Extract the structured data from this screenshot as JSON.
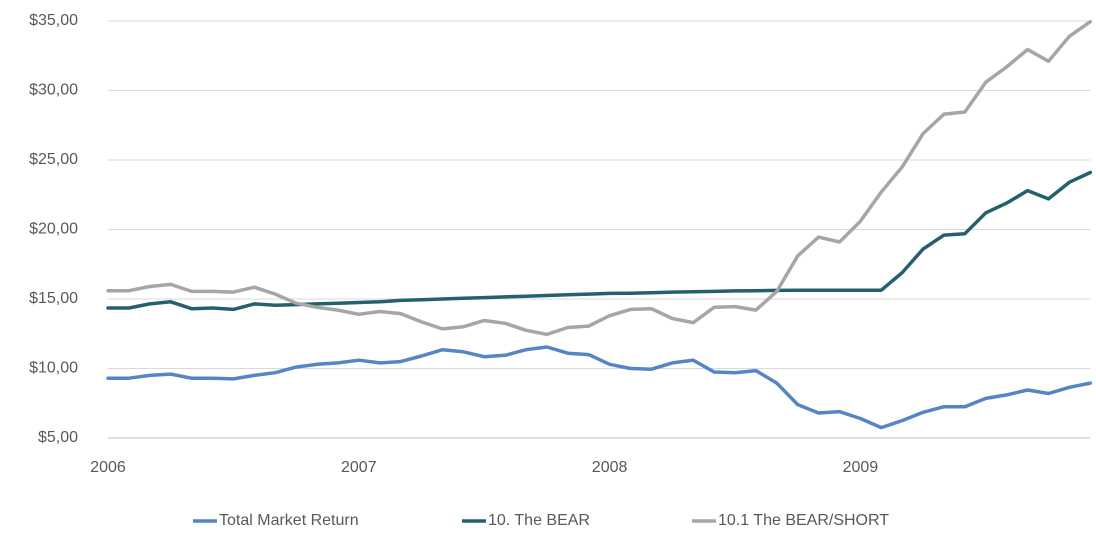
{
  "chart_data": {
    "type": "line",
    "categories": [
      "2006",
      null,
      null,
      null,
      null,
      null,
      null,
      null,
      null,
      null,
      null,
      null,
      "2007",
      null,
      null,
      null,
      null,
      null,
      null,
      null,
      null,
      null,
      null,
      null,
      "2008",
      null,
      null,
      null,
      null,
      null,
      null,
      null,
      null,
      null,
      null,
      null,
      "2009",
      null,
      null,
      null,
      null,
      null,
      null,
      null,
      null,
      null,
      null,
      null
    ],
    "series": [
      {
        "name": "Total Market Return",
        "color": "#5585c5",
        "values": [
          9.3,
          9.3,
          9.5,
          9.6,
          9.3,
          9.3,
          9.25,
          9.5,
          9.7,
          10.1,
          10.3,
          10.4,
          10.6,
          10.4,
          10.5,
          10.9,
          11.35,
          11.2,
          10.85,
          10.95,
          11.35,
          11.55,
          11.1,
          11.0,
          10.3,
          10.0,
          9.95,
          10.4,
          10.6,
          9.75,
          9.7,
          9.85,
          8.95,
          7.4,
          6.8,
          6.9,
          6.4,
          5.75,
          6.25,
          6.85,
          7.25,
          7.25,
          7.85,
          8.1,
          8.45,
          8.2,
          8.65,
          8.95
        ]
      },
      {
        "name": "10. The BEAR",
        "color": "#26606d",
        "values": [
          14.35,
          14.35,
          14.65,
          14.8,
          14.3,
          14.35,
          14.25,
          14.65,
          14.55,
          14.6,
          14.65,
          14.7,
          14.75,
          14.8,
          14.9,
          14.95,
          15.0,
          15.05,
          15.1,
          15.15,
          15.2,
          15.25,
          15.3,
          15.35,
          15.4,
          15.42,
          15.45,
          15.5,
          15.52,
          15.55,
          15.58,
          15.6,
          15.62,
          15.63,
          15.63,
          15.63,
          15.63,
          15.63,
          16.9,
          18.6,
          19.6,
          19.7,
          21.2,
          21.9,
          22.8,
          22.2,
          23.4,
          24.1
        ]
      },
      {
        "name": "10.1 The BEAR/SHORT",
        "color": "#a6a6a6",
        "values": [
          15.6,
          15.6,
          15.9,
          16.05,
          15.55,
          15.55,
          15.5,
          15.85,
          15.35,
          14.7,
          14.4,
          14.2,
          13.9,
          14.1,
          13.95,
          13.35,
          12.85,
          13.0,
          13.45,
          13.25,
          12.75,
          12.45,
          12.95,
          13.05,
          13.8,
          14.25,
          14.3,
          13.6,
          13.3,
          14.4,
          14.45,
          14.2,
          15.55,
          18.1,
          19.45,
          19.1,
          20.6,
          22.7,
          24.5,
          26.9,
          28.3,
          28.45,
          30.6,
          31.7,
          32.95,
          32.1,
          33.9,
          34.95
        ]
      }
    ],
    "ylim": [
      5,
      35
    ],
    "yticks": [
      {
        "value": 5,
        "label": "$5,00"
      },
      {
        "value": 10,
        "label": "$10,00"
      },
      {
        "value": 15,
        "label": "$15,00"
      },
      {
        "value": 20,
        "label": "$20,00"
      },
      {
        "value": 25,
        "label": "$25,00"
      },
      {
        "value": 30,
        "label": "$30,00"
      },
      {
        "value": 35,
        "label": "$35,00"
      }
    ],
    "grid": true,
    "legend": "bottom"
  }
}
